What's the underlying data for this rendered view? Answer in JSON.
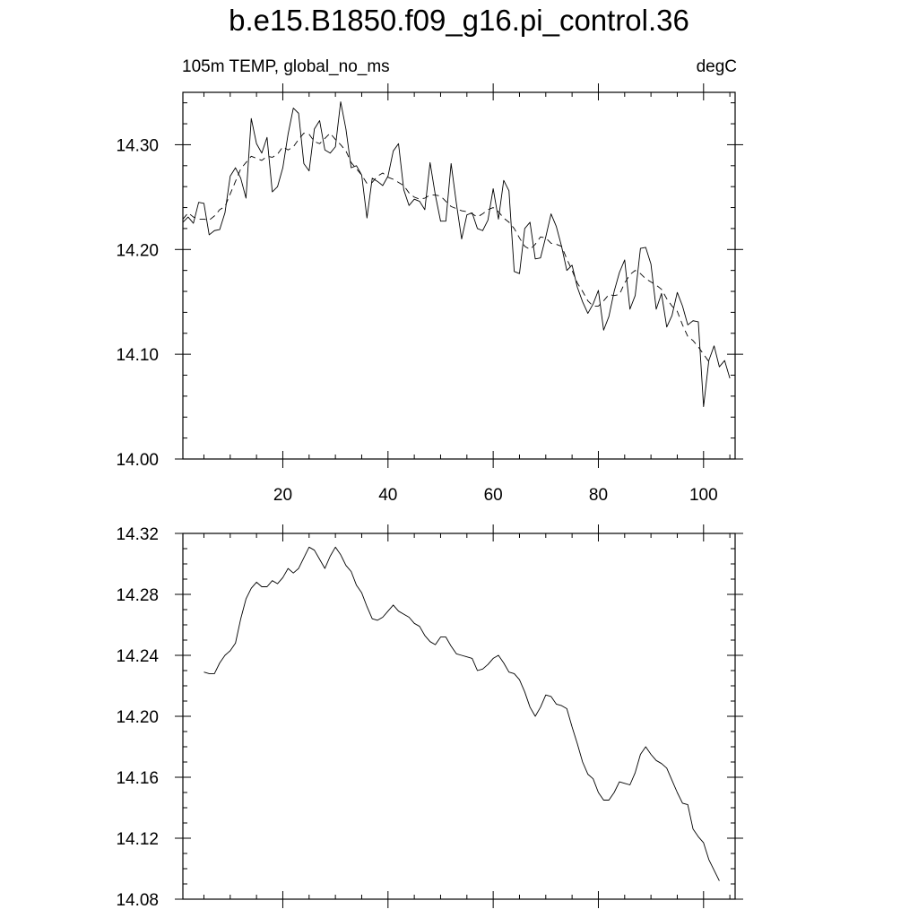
{
  "title": "b.e15.B1850.f09_g16.pi_control.36",
  "chart_data": [
    {
      "type": "line",
      "left_label": "105m TEMP, global_no_ms",
      "right_label": "degC",
      "xlim": [
        1,
        106
      ],
      "ylim": [
        14.0,
        14.35
      ],
      "x_ticks": [
        20,
        40,
        60,
        80,
        100
      ],
      "y_ticks": [
        "14.00",
        "14.10",
        "14.20",
        "14.30"
      ],
      "x_start": 1,
      "series": [
        {
          "style": "solid",
          "values": [
            14.226,
            14.231,
            14.225,
            14.245,
            14.244,
            14.214,
            14.218,
            14.219,
            14.235,
            14.27,
            14.278,
            14.268,
            14.249,
            14.325,
            14.301,
            14.292,
            14.307,
            14.255,
            14.26,
            14.278,
            14.31,
            14.335,
            14.33,
            14.282,
            14.275,
            14.315,
            14.323,
            14.295,
            14.292,
            14.298,
            14.341,
            14.315,
            14.278,
            14.28,
            14.271,
            14.23,
            14.268,
            14.265,
            14.261,
            14.27,
            14.294,
            14.301,
            14.257,
            14.242,
            14.248,
            14.246,
            14.238,
            14.283,
            14.252,
            14.227,
            14.227,
            14.282,
            14.244,
            14.21,
            14.233,
            14.235,
            14.22,
            14.218,
            14.228,
            14.258,
            14.229,
            14.266,
            14.256,
            14.179,
            14.177,
            14.22,
            14.226,
            14.191,
            14.192,
            14.212,
            14.234,
            14.222,
            14.203,
            14.18,
            14.185,
            14.164,
            14.15,
            14.139,
            14.148,
            14.161,
            14.123,
            14.136,
            14.16,
            14.178,
            14.19,
            14.143,
            14.156,
            14.201,
            14.202,
            14.186,
            14.143,
            14.158,
            14.126,
            14.137,
            14.159,
            14.146,
            14.128,
            14.132,
            14.131,
            14.05,
            14.094,
            14.108,
            14.088,
            14.094,
            14.077
          ]
        },
        {
          "style": "dashed",
          "values": [
            14.229,
            14.235,
            14.231,
            14.229,
            14.229,
            14.228,
            14.232,
            14.238,
            14.241,
            14.253,
            14.265,
            14.277,
            14.283,
            14.289,
            14.287,
            14.285,
            14.289,
            14.288,
            14.291,
            14.298,
            14.295,
            14.298,
            14.305,
            14.311,
            14.31,
            14.303,
            14.301,
            14.306,
            14.311,
            14.305,
            14.3,
            14.294,
            14.283,
            14.277,
            14.271,
            14.263,
            14.264,
            14.27,
            14.273,
            14.269,
            14.267,
            14.264,
            14.261,
            14.254,
            14.25,
            14.248,
            14.249,
            14.252,
            14.252,
            14.251,
            14.246,
            14.241,
            14.239,
            14.237,
            14.236,
            14.234,
            14.231,
            14.234,
            14.238,
            14.24,
            14.236,
            14.23,
            14.226,
            14.22,
            14.211,
            14.203,
            14.2,
            14.205,
            14.212,
            14.211,
            14.206,
            14.205,
            14.203,
            14.191,
            14.18,
            14.168,
            14.16,
            14.151,
            14.146,
            14.146,
            14.151,
            14.157,
            14.156,
            14.157,
            14.168,
            14.176,
            14.18,
            14.177,
            14.172,
            14.169,
            14.166,
            14.162,
            14.153,
            14.146,
            14.141,
            14.128,
            14.117,
            14.113,
            14.107,
            14.1,
            14.093
          ]
        }
      ]
    },
    {
      "type": "line",
      "ylim": [
        14.08,
        14.32
      ],
      "y_ticks": [
        "14.08",
        "14.12",
        "14.16",
        "14.20",
        "14.24",
        "14.28",
        "14.32"
      ],
      "x_ticks_unlabeled": [
        20,
        40,
        60,
        80,
        100
      ],
      "xlim": [
        1,
        106
      ],
      "x_start": 5,
      "series": [
        {
          "style": "solid",
          "values": [
            14.229,
            14.228,
            14.228,
            14.235,
            14.24,
            14.243,
            14.248,
            14.264,
            14.277,
            14.284,
            14.288,
            14.285,
            14.285,
            14.289,
            14.287,
            14.291,
            14.297,
            14.294,
            14.297,
            14.304,
            14.311,
            14.309,
            14.303,
            14.297,
            14.305,
            14.311,
            14.306,
            14.299,
            14.295,
            14.286,
            14.281,
            14.272,
            14.264,
            14.263,
            14.265,
            14.269,
            14.273,
            14.269,
            14.267,
            14.265,
            14.261,
            14.259,
            14.253,
            14.249,
            14.247,
            14.252,
            14.252,
            14.246,
            14.241,
            14.24,
            14.239,
            14.238,
            14.23,
            14.231,
            14.234,
            14.238,
            14.24,
            14.235,
            14.229,
            14.228,
            14.224,
            14.216,
            14.206,
            14.2,
            14.206,
            14.214,
            14.213,
            14.208,
            14.207,
            14.205,
            14.193,
            14.182,
            14.17,
            14.162,
            14.159,
            14.15,
            14.145,
            14.145,
            14.15,
            14.157,
            14.156,
            14.155,
            14.163,
            14.175,
            14.18,
            14.175,
            14.171,
            14.169,
            14.166,
            14.158,
            14.15,
            14.143,
            14.142,
            14.126,
            14.121,
            14.117,
            14.106,
            14.099,
            14.092
          ]
        }
      ]
    }
  ]
}
